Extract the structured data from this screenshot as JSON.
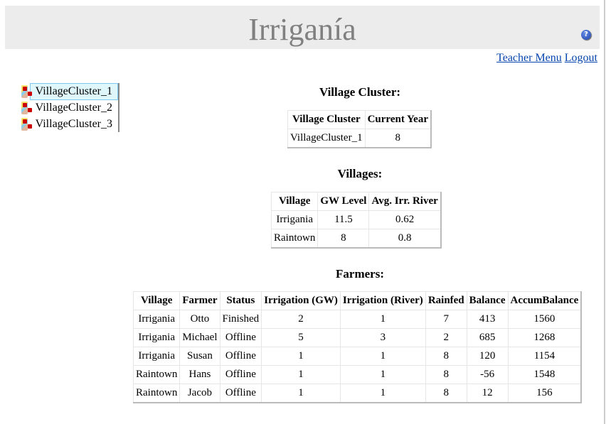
{
  "header": {
    "title": "Irriganía",
    "help_icon": "question-circle-icon"
  },
  "links": {
    "teacher_menu": "Teacher Menu",
    "logout": "Logout"
  },
  "tree": {
    "items": [
      {
        "label": "VillageCluster_1",
        "selected": true
      },
      {
        "label": "VillageCluster_2"
      },
      {
        "label": "VillageCluster_3"
      }
    ]
  },
  "cluster": {
    "heading": "Village Cluster:",
    "columns": [
      "Village Cluster",
      "Current Year"
    ],
    "rows": [
      [
        "VillageCluster_1",
        "8"
      ]
    ]
  },
  "villages": {
    "heading": "Villages:",
    "columns": [
      "Village",
      "GW Level",
      "Avg. Irr. River"
    ],
    "rows": [
      [
        "Irrigania",
        "11.5",
        "0.62"
      ],
      [
        "Raintown",
        "8",
        "0.8"
      ]
    ]
  },
  "farmers": {
    "heading": "Farmers:",
    "columns": [
      "Village",
      "Farmer",
      "Status",
      "Irrigation (GW)",
      "Irrigation (River)",
      "Rainfed",
      "Balance",
      "AccumBalance"
    ],
    "rows": [
      [
        "Irrigania",
        "Otto",
        "Finished",
        "2",
        "1",
        "7",
        "413",
        "1560"
      ],
      [
        "Irrigania",
        "Michael",
        "Offline",
        "5",
        "3",
        "2",
        "685",
        "1268"
      ],
      [
        "Irrigania",
        "Susan",
        "Offline",
        "1",
        "1",
        "8",
        "120",
        "1154"
      ],
      [
        "Raintown",
        "Hans",
        "Offline",
        "1",
        "1",
        "8",
        "-56",
        "1548"
      ],
      [
        "Raintown",
        "Jacob",
        "Offline",
        "1",
        "1",
        "8",
        "12",
        "156"
      ]
    ]
  }
}
